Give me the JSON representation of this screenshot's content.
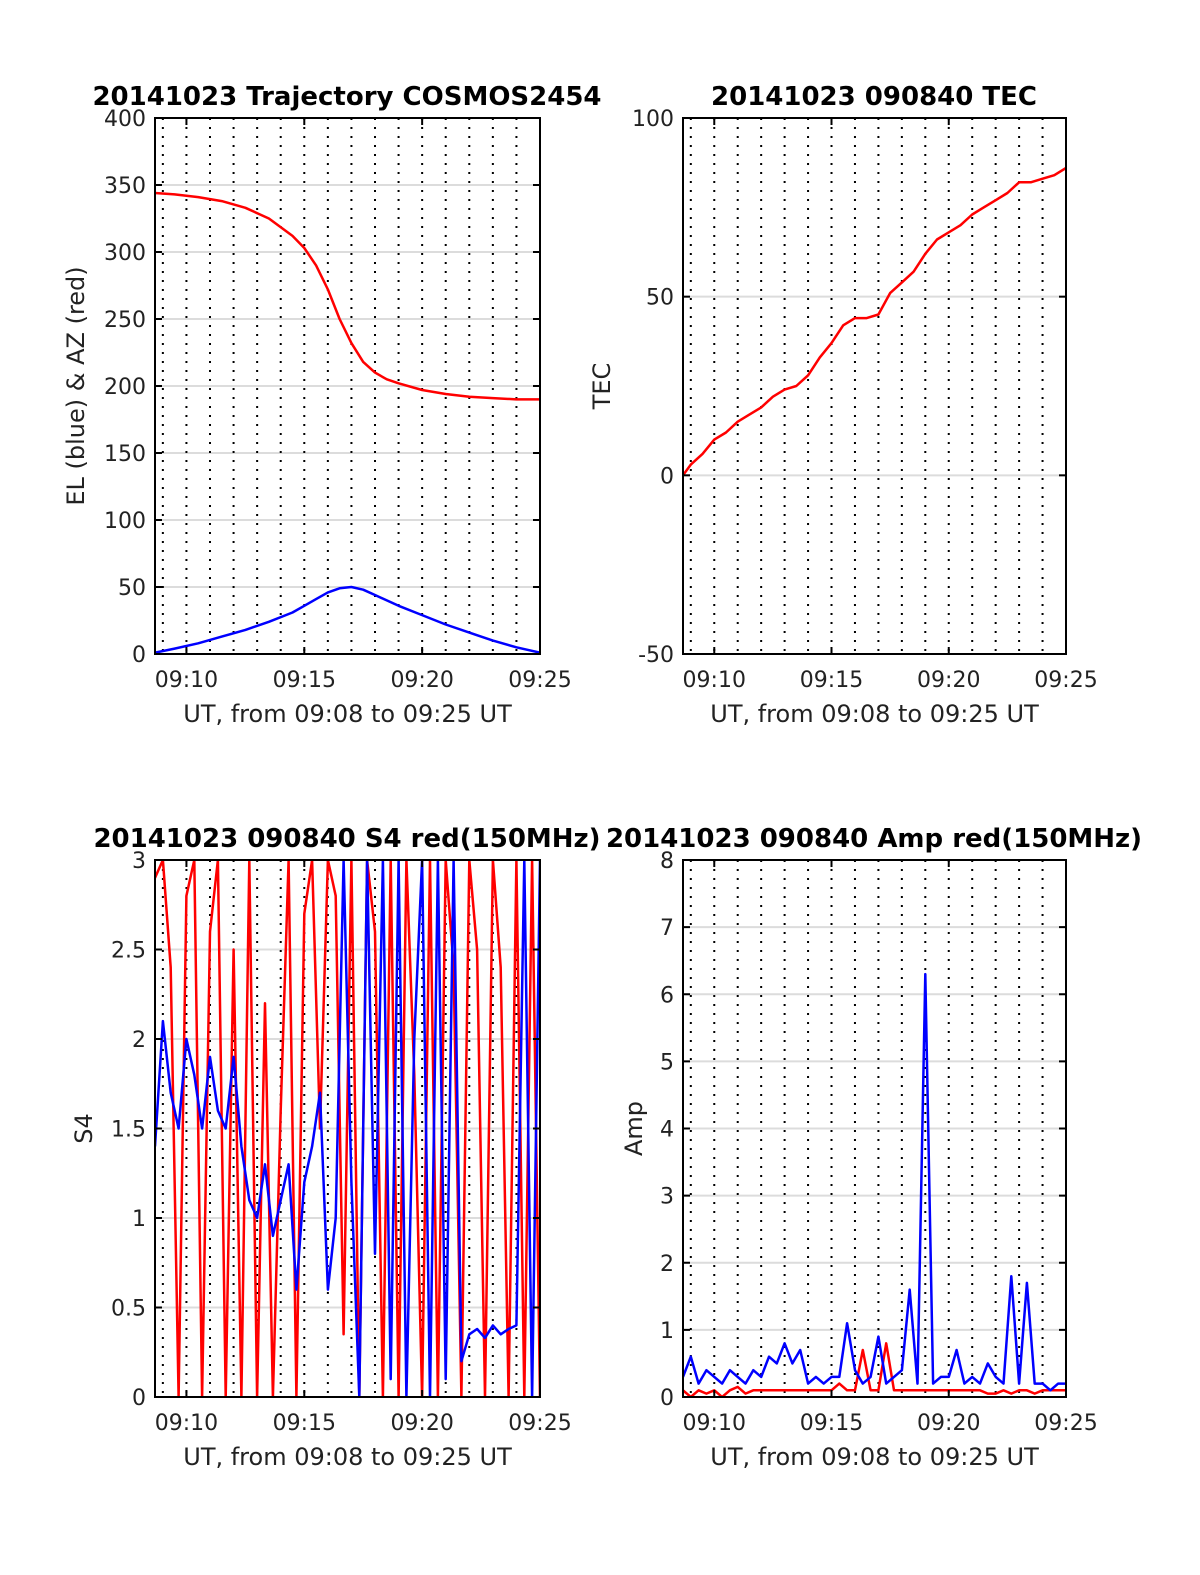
{
  "colors": {
    "red": "#ff0000",
    "blue": "#0000ff"
  },
  "chart_data": [
    {
      "id": "trajectory",
      "type": "line",
      "title": "20141023 Trajectory COSMOS2454",
      "xlabel": "UT, from 09:08 to 09:25 UT",
      "ylabel": "EL (blue) & AZ (red)",
      "xlim": [
        "09:08:40",
        "09:25:00"
      ],
      "ylim": [
        0,
        400
      ],
      "xticks": [
        "09:10",
        "09:15",
        "09:20",
        "09:25"
      ],
      "yticks": [
        0,
        50,
        100,
        150,
        200,
        250,
        300,
        350,
        400
      ],
      "grid": true,
      "x": [
        "09:08:40",
        "09:09:30",
        "09:10:30",
        "09:11:30",
        "09:12:30",
        "09:13:30",
        "09:14:30",
        "09:15:00",
        "09:15:30",
        "09:16:00",
        "09:16:30",
        "09:17:00",
        "09:17:30",
        "09:18:00",
        "09:18:30",
        "09:19:00",
        "09:20:00",
        "09:21:00",
        "09:22:00",
        "09:23:00",
        "09:24:00",
        "09:25:00"
      ],
      "series": [
        {
          "color": "red",
          "values": [
            344,
            343,
            341,
            338,
            333,
            325,
            312,
            303,
            290,
            272,
            250,
            232,
            218,
            210,
            205,
            202,
            197,
            194,
            192,
            191,
            190,
            190
          ]
        },
        {
          "color": "blue",
          "values": [
            1,
            4,
            8,
            13,
            18,
            24,
            31,
            36,
            41,
            46,
            49,
            50,
            48,
            44,
            40,
            36,
            29,
            22,
            16,
            10,
            5,
            1
          ]
        }
      ]
    },
    {
      "id": "tec",
      "type": "line",
      "title": "20141023 090840 TEC",
      "xlabel": "UT, from 09:08 to 09:25 UT",
      "ylabel": "TEC",
      "xlim": [
        "09:08:40",
        "09:25:00"
      ],
      "ylim": [
        -50,
        100
      ],
      "xticks": [
        "09:10",
        "09:15",
        "09:20",
        "09:25"
      ],
      "yticks": [
        -50,
        0,
        50,
        100
      ],
      "grid": true,
      "x": [
        "09:08:40",
        "09:09:00",
        "09:09:30",
        "09:10:00",
        "09:10:30",
        "09:11:00",
        "09:11:30",
        "09:12:00",
        "09:12:30",
        "09:13:00",
        "09:13:30",
        "09:14:00",
        "09:14:30",
        "09:15:00",
        "09:15:30",
        "09:16:00",
        "09:16:30",
        "09:17:00",
        "09:17:30",
        "09:18:00",
        "09:18:30",
        "09:19:00",
        "09:19:30",
        "09:20:00",
        "09:20:30",
        "09:21:00",
        "09:21:30",
        "09:22:00",
        "09:22:30",
        "09:23:00",
        "09:23:30",
        "09:24:00",
        "09:24:30",
        "09:25:00"
      ],
      "series": [
        {
          "color": "red",
          "values": [
            0,
            3,
            6,
            10,
            12,
            15,
            17,
            19,
            22,
            24,
            25,
            28,
            33,
            37,
            42,
            44,
            44,
            45,
            51,
            54,
            57,
            62,
            66,
            68,
            70,
            73,
            75,
            77,
            79,
            82,
            82,
            83,
            84,
            86
          ]
        }
      ]
    },
    {
      "id": "s4",
      "type": "line",
      "title": "20141023 090840 S4 red(150MHz)",
      "xlabel": "UT, from 09:08 to 09:25 UT",
      "ylabel": "S4",
      "xlim": [
        "09:08:40",
        "09:25:00"
      ],
      "ylim": [
        0,
        3
      ],
      "xticks": [
        "09:10",
        "09:15",
        "09:20",
        "09:25"
      ],
      "yticks": [
        0,
        0.5,
        1,
        1.5,
        2,
        2.5,
        3
      ],
      "grid": true,
      "x": [
        "09:08:40",
        "09:09:00",
        "09:09:20",
        "09:09:40",
        "09:10:00",
        "09:10:20",
        "09:10:40",
        "09:11:00",
        "09:11:20",
        "09:11:40",
        "09:12:00",
        "09:12:20",
        "09:12:40",
        "09:13:00",
        "09:13:20",
        "09:13:40",
        "09:14:00",
        "09:14:20",
        "09:14:40",
        "09:15:00",
        "09:15:20",
        "09:15:40",
        "09:16:00",
        "09:16:20",
        "09:16:40",
        "09:17:00",
        "09:17:20",
        "09:17:40",
        "09:18:00",
        "09:18:20",
        "09:18:40",
        "09:19:00",
        "09:19:20",
        "09:19:40",
        "09:20:00",
        "09:20:20",
        "09:20:40",
        "09:21:00",
        "09:21:20",
        "09:21:40",
        "09:22:00",
        "09:22:20",
        "09:22:40",
        "09:23:00",
        "09:23:20",
        "09:23:40",
        "09:24:00",
        "09:24:20",
        "09:24:40",
        "09:25:00"
      ],
      "series": [
        {
          "color": "red",
          "values": [
            2.9,
            3.0,
            2.4,
            0.0,
            2.8,
            3.0,
            0.0,
            2.6,
            3.0,
            0.0,
            2.5,
            0.0,
            3.0,
            0.0,
            2.2,
            0.0,
            1.6,
            3.0,
            0.0,
            2.7,
            3.0,
            1.5,
            3.0,
            2.8,
            0.35,
            3.0,
            0.0,
            3.0,
            2.6,
            0.0,
            3.0,
            0.0,
            3.0,
            1.8,
            0.0,
            3.0,
            0.0,
            3.0,
            2.4,
            0.0,
            3.0,
            2.5,
            0.0,
            3.0,
            2.4,
            0.0,
            3.0,
            0.0,
            3.0,
            0.0
          ]
        },
        {
          "color": "blue",
          "values": [
            1.4,
            2.1,
            1.7,
            1.5,
            2.0,
            1.8,
            1.5,
            1.9,
            1.6,
            1.5,
            1.9,
            1.4,
            1.1,
            1.0,
            1.3,
            0.9,
            1.1,
            1.3,
            0.6,
            1.2,
            1.4,
            1.7,
            0.6,
            1.0,
            3.0,
            1.2,
            0.0,
            3.0,
            0.8,
            3.0,
            0.1,
            3.0,
            0.0,
            2.0,
            3.0,
            0.0,
            3.0,
            0.1,
            3.0,
            0.2,
            0.35,
            0.38,
            0.33,
            0.4,
            0.35,
            0.38,
            0.4,
            3.0,
            0.0,
            3.0
          ]
        }
      ]
    },
    {
      "id": "amp",
      "type": "line",
      "title": "20141023 090840 Amp red(150MHz)",
      "xlabel": "UT, from 09:08 to 09:25 UT",
      "ylabel": "Amp",
      "xlim": [
        "09:08:40",
        "09:25:00"
      ],
      "ylim": [
        0,
        8
      ],
      "xticks": [
        "09:10",
        "09:15",
        "09:20",
        "09:25"
      ],
      "yticks": [
        0,
        1,
        2,
        3,
        4,
        5,
        6,
        7,
        8
      ],
      "grid": true,
      "x": [
        "09:08:40",
        "09:09:00",
        "09:09:20",
        "09:09:40",
        "09:10:00",
        "09:10:20",
        "09:10:40",
        "09:11:00",
        "09:11:20",
        "09:11:40",
        "09:12:00",
        "09:12:20",
        "09:12:40",
        "09:13:00",
        "09:13:20",
        "09:13:40",
        "09:14:00",
        "09:14:20",
        "09:14:40",
        "09:15:00",
        "09:15:20",
        "09:15:40",
        "09:16:00",
        "09:16:20",
        "09:16:40",
        "09:17:00",
        "09:17:20",
        "09:17:40",
        "09:18:00",
        "09:18:20",
        "09:18:40",
        "09:19:00",
        "09:19:20",
        "09:19:40",
        "09:20:00",
        "09:20:20",
        "09:20:40",
        "09:21:00",
        "09:21:20",
        "09:21:40",
        "09:22:00",
        "09:22:20",
        "09:22:40",
        "09:23:00",
        "09:23:20",
        "09:23:40",
        "09:24:00",
        "09:24:20",
        "09:24:40",
        "09:25:00"
      ],
      "series": [
        {
          "color": "red",
          "values": [
            0.1,
            0.0,
            0.1,
            0.05,
            0.1,
            0.0,
            0.1,
            0.15,
            0.05,
            0.1,
            0.1,
            0.1,
            0.1,
            0.1,
            0.1,
            0.1,
            0.1,
            0.1,
            0.1,
            0.1,
            0.2,
            0.1,
            0.1,
            0.7,
            0.1,
            0.1,
            0.8,
            0.1,
            0.1,
            0.1,
            0.1,
            0.1,
            0.1,
            0.1,
            0.1,
            0.1,
            0.1,
            0.1,
            0.1,
            0.05,
            0.05,
            0.1,
            0.05,
            0.1,
            0.1,
            0.05,
            0.1,
            0.1,
            0.1,
            0.1
          ]
        },
        {
          "color": "blue",
          "values": [
            0.3,
            0.6,
            0.2,
            0.4,
            0.3,
            0.2,
            0.4,
            0.3,
            0.2,
            0.4,
            0.3,
            0.6,
            0.5,
            0.8,
            0.5,
            0.7,
            0.2,
            0.3,
            0.2,
            0.3,
            0.3,
            1.1,
            0.4,
            0.2,
            0.3,
            0.9,
            0.2,
            0.3,
            0.4,
            1.6,
            0.2,
            6.3,
            0.2,
            0.3,
            0.3,
            0.7,
            0.2,
            0.3,
            0.2,
            0.5,
            0.3,
            0.2,
            1.8,
            0.2,
            1.7,
            0.2,
            0.2,
            0.1,
            0.2,
            0.2
          ]
        }
      ]
    }
  ]
}
